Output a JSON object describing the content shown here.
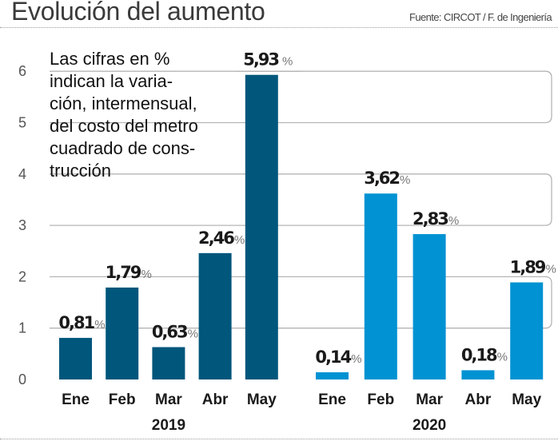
{
  "header": {
    "title": "Evolución del aumento",
    "source": "Fuente: CIRCOT / F. de Ingeniería"
  },
  "annotation": "Las cifras en %\nindican la varia-\nción, intermensual,\ndel costo del metro\ncuadrado de cons-\ntrucción",
  "colors": {
    "series_2019": "#00567b",
    "series_2020": "#0092d2",
    "gridline": "#b5b5b5"
  },
  "chart_data": {
    "type": "bar",
    "title": "Evolución del aumento",
    "xlabel": "",
    "ylabel": "",
    "ylim": [
      0,
      6
    ],
    "yticks": [
      0,
      1,
      2,
      3,
      4,
      5,
      6
    ],
    "grid": true,
    "value_suffix": "%",
    "groups": [
      {
        "name": "2019",
        "categories": [
          "Ene",
          "Feb",
          "Mar",
          "Abr",
          "May"
        ],
        "values": [
          0.81,
          1.79,
          0.63,
          2.46,
          5.93
        ],
        "labels": [
          "0,81",
          "1,79",
          "0,63",
          "2,46",
          "5,93"
        ]
      },
      {
        "name": "2020",
        "categories": [
          "Ene",
          "Feb",
          "Mar",
          "Abr",
          "May"
        ],
        "values": [
          0.14,
          3.62,
          2.83,
          0.18,
          1.89
        ],
        "labels": [
          "0,14",
          "3,62",
          "2,83",
          "0,18",
          "1,89"
        ]
      }
    ]
  }
}
